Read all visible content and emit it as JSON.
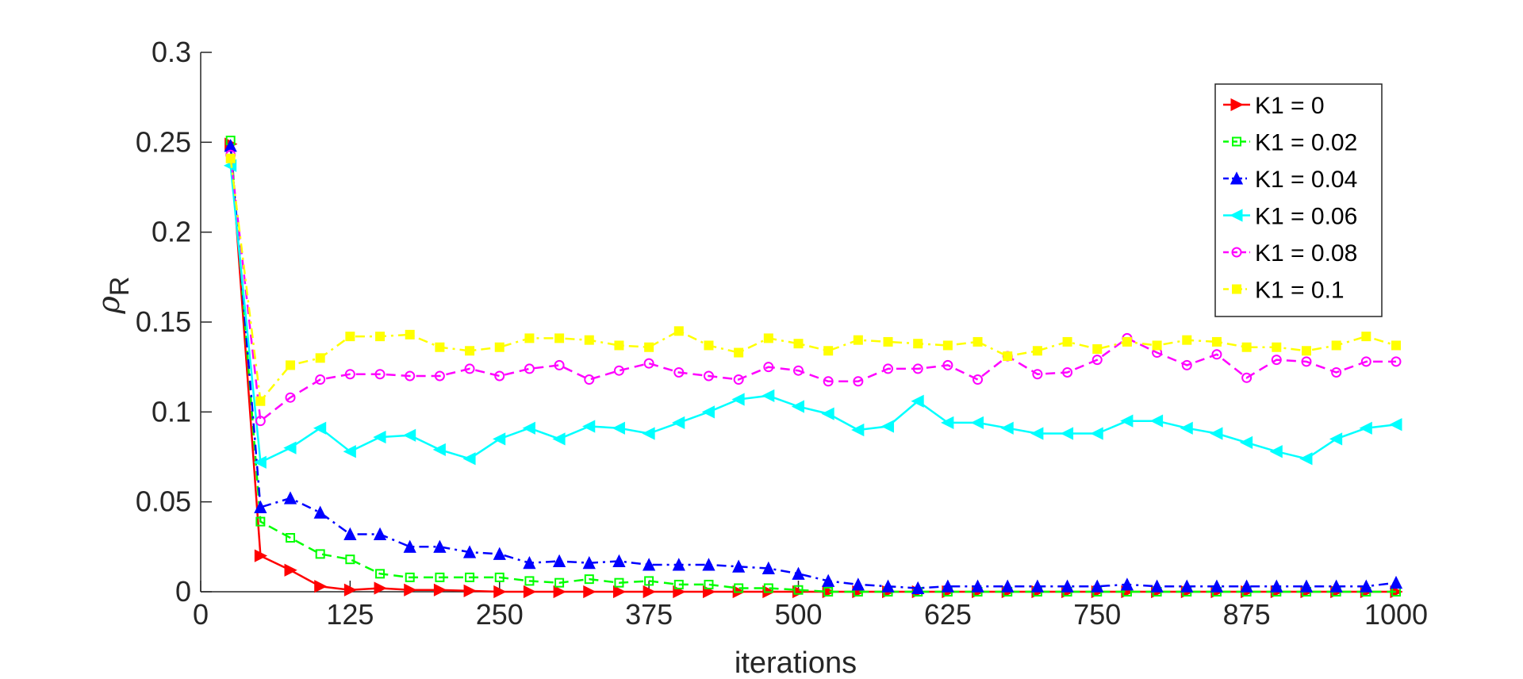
{
  "chart_data": {
    "type": "line",
    "xlabel": "iterations",
    "ylabel": "ρ",
    "ylabel_sub": "R",
    "xlim": [
      0,
      1000
    ],
    "ylim": [
      0,
      0.3
    ],
    "xticks": [
      0,
      125,
      250,
      375,
      500,
      625,
      750,
      875,
      1000
    ],
    "yticks": [
      0,
      0.05,
      0.1,
      0.15,
      0.2,
      0.25,
      0.3
    ],
    "xtick_labels": [
      "0",
      "125",
      "250",
      "375",
      "500",
      "625",
      "750",
      "875",
      "1000"
    ],
    "ytick_labels": [
      "0",
      "0.05",
      "0.1",
      "0.15",
      "0.2",
      "0.25",
      "0.3"
    ],
    "grid": false,
    "legend_position": "top-right",
    "x": [
      25,
      50,
      75,
      100,
      125,
      150,
      175,
      200,
      225,
      250,
      275,
      300,
      325,
      350,
      375,
      400,
      425,
      450,
      475,
      500,
      525,
      550,
      575,
      600,
      625,
      650,
      675,
      700,
      725,
      750,
      775,
      800,
      825,
      850,
      875,
      900,
      925,
      950,
      975,
      1000
    ],
    "series": [
      {
        "name": "K1 = 0",
        "color": "#ff0000",
        "dash": "solid",
        "marker": "triangle-right",
        "values": [
          0.249,
          0.02,
          0.012,
          0.003,
          0.001,
          0.002,
          0.001,
          0.001,
          0.0005,
          0,
          0,
          0,
          0,
          0,
          0,
          0,
          0,
          0,
          0,
          0,
          0,
          0,
          0,
          0,
          0,
          0,
          0,
          0,
          0,
          0,
          0,
          0,
          0,
          0,
          0,
          0,
          0,
          0,
          0,
          0
        ]
      },
      {
        "name": "K1 = 0.02",
        "color": "#00ff00",
        "dash": "dashed",
        "marker": "square",
        "values": [
          0.251,
          0.039,
          0.03,
          0.021,
          0.018,
          0.01,
          0.008,
          0.008,
          0.008,
          0.008,
          0.006,
          0.005,
          0.007,
          0.005,
          0.006,
          0.004,
          0.004,
          0.002,
          0.002,
          0.001,
          0,
          0,
          0,
          0,
          0,
          0,
          0,
          0,
          0,
          0,
          0,
          0,
          0,
          0,
          0,
          0,
          0,
          0,
          0,
          0
        ]
      },
      {
        "name": "K1 = 0.04",
        "color": "#0000ff",
        "dash": "dashdot",
        "marker": "triangle-up",
        "values": [
          0.248,
          0.047,
          0.052,
          0.044,
          0.032,
          0.032,
          0.025,
          0.025,
          0.022,
          0.021,
          0.016,
          0.017,
          0.016,
          0.017,
          0.015,
          0.015,
          0.015,
          0.014,
          0.013,
          0.01,
          0.006,
          0.004,
          0.003,
          0.002,
          0.003,
          0.003,
          0.003,
          0.003,
          0.003,
          0.003,
          0.004,
          0.003,
          0.003,
          0.003,
          0.003,
          0.003,
          0.003,
          0.003,
          0.003,
          0.005
        ]
      },
      {
        "name": "K1 = 0.06",
        "color": "#00ffff",
        "dash": "solid",
        "marker": "triangle-left",
        "values": [
          0.237,
          0.072,
          0.08,
          0.091,
          0.078,
          0.086,
          0.087,
          0.079,
          0.074,
          0.085,
          0.091,
          0.085,
          0.092,
          0.091,
          0.088,
          0.094,
          0.1,
          0.107,
          0.109,
          0.103,
          0.099,
          0.09,
          0.092,
          0.106,
          0.094,
          0.094,
          0.091,
          0.088,
          0.088,
          0.088,
          0.095,
          0.095,
          0.091,
          0.088,
          0.083,
          0.078,
          0.074,
          0.085,
          0.091,
          0.093
        ]
      },
      {
        "name": "K1 = 0.08",
        "color": "#ff00ff",
        "dash": "dashed",
        "marker": "circle",
        "values": [
          0.243,
          0.095,
          0.108,
          0.118,
          0.121,
          0.121,
          0.12,
          0.12,
          0.124,
          0.12,
          0.124,
          0.126,
          0.118,
          0.123,
          0.127,
          0.122,
          0.12,
          0.118,
          0.125,
          0.123,
          0.117,
          0.117,
          0.124,
          0.124,
          0.126,
          0.118,
          0.131,
          0.121,
          0.122,
          0.129,
          0.141,
          0.133,
          0.126,
          0.132,
          0.119,
          0.129,
          0.128,
          0.122,
          0.128,
          0.128
        ]
      },
      {
        "name": "K1 = 0.1",
        "color": "#ffff00",
        "dash": "dashdot",
        "marker": "square-filled",
        "values": [
          0.241,
          0.106,
          0.126,
          0.13,
          0.142,
          0.142,
          0.143,
          0.136,
          0.134,
          0.136,
          0.141,
          0.141,
          0.14,
          0.137,
          0.136,
          0.145,
          0.137,
          0.133,
          0.141,
          0.138,
          0.134,
          0.14,
          0.139,
          0.138,
          0.137,
          0.139,
          0.131,
          0.134,
          0.139,
          0.135,
          0.139,
          0.137,
          0.14,
          0.139,
          0.136,
          0.136,
          0.134,
          0.137,
          0.142,
          0.137
        ]
      }
    ]
  }
}
